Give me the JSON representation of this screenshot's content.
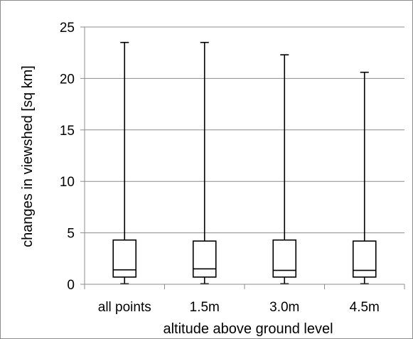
{
  "chart_data": {
    "type": "boxplot",
    "title": "",
    "xlabel": "altitude above ground level",
    "ylabel": "changes in viewshed [sq km]",
    "ylim": [
      0,
      25
    ],
    "yticks": [
      0,
      5,
      10,
      15,
      20,
      25
    ],
    "grid": true,
    "legend": "none",
    "categories": [
      "all points",
      "1.5m",
      "3.0m",
      "4.5m"
    ],
    "boxes": [
      {
        "category": "all points",
        "min": 0.05,
        "q1": 0.7,
        "median": 1.4,
        "q3": 4.3,
        "max": 23.5
      },
      {
        "category": "1.5m",
        "min": 0.05,
        "q1": 0.7,
        "median": 1.5,
        "q3": 4.2,
        "max": 23.5
      },
      {
        "category": "3.0m",
        "min": 0.05,
        "q1": 0.7,
        "median": 1.35,
        "q3": 4.3,
        "max": 22.3
      },
      {
        "category": "4.5m",
        "min": 0.05,
        "q1": 0.7,
        "median": 1.35,
        "q3": 4.2,
        "max": 20.6
      }
    ],
    "colors": {
      "box_fill": "#ffffff",
      "stroke": "#000000",
      "grid": "#8c8c8c",
      "frame": "#8c8c8c"
    }
  }
}
